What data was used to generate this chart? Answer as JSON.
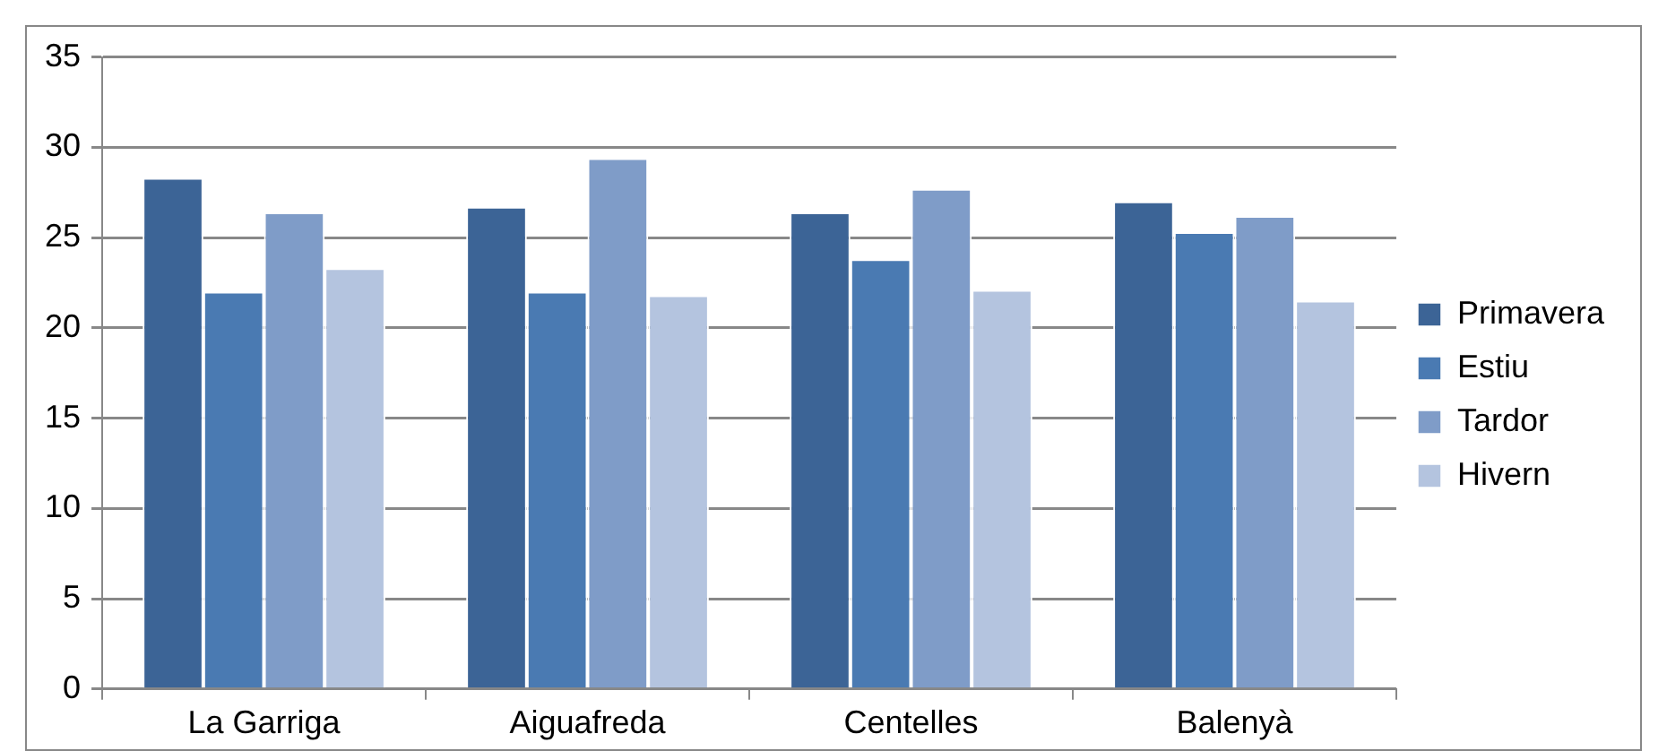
{
  "chart_data": {
    "type": "bar",
    "categories": [
      "La Garriga",
      "Aiguafreda",
      "Centelles",
      "Balenyà"
    ],
    "series": [
      {
        "name": "Primavera",
        "color": "#3c6496",
        "values": [
          28.3,
          26.7,
          26.4,
          27.0
        ]
      },
      {
        "name": "Estiu",
        "color": "#4a7ab2",
        "values": [
          22.0,
          22.0,
          23.8,
          25.3
        ]
      },
      {
        "name": "Tardor",
        "color": "#7f9cc8",
        "values": [
          26.4,
          29.4,
          27.7,
          26.2
        ]
      },
      {
        "name": "Hivern",
        "color": "#b4c4df",
        "values": [
          23.3,
          21.8,
          22.1,
          21.5
        ]
      }
    ],
    "ylim": [
      0,
      35
    ],
    "yticks": [
      0,
      5,
      10,
      15,
      20,
      25,
      30,
      35
    ],
    "grid": "y",
    "legend": "right"
  }
}
